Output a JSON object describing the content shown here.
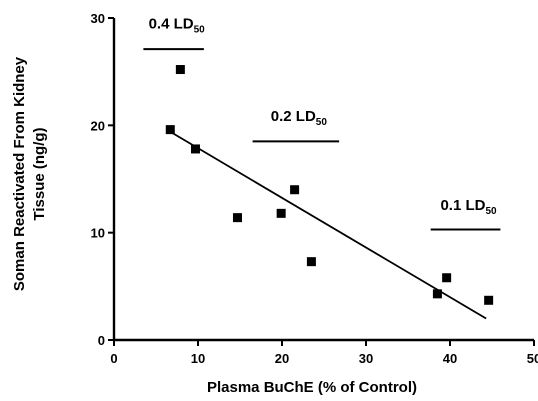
{
  "chart_data": {
    "type": "scatter",
    "title": "",
    "xlabel": "Plasma BuChE (% of Control)",
    "ylabel_lines": [
      "Soman Reactivated From Kidney",
      "Tissue (ng/g)"
    ],
    "xlim": [
      0,
      50
    ],
    "ylim": [
      0,
      30
    ],
    "x_ticks": [
      "0",
      "10",
      "20",
      "30",
      "40",
      "50"
    ],
    "y_ticks": [
      "0",
      "10",
      "20",
      "30"
    ],
    "grid": false,
    "legend": "none",
    "series": [
      {
        "points": [
          {
            "x": 6.7,
            "y": 19.6
          },
          {
            "x": 7.9,
            "y": 25.2
          },
          {
            "x": 9.7,
            "y": 17.8
          },
          {
            "x": 14.7,
            "y": 11.4
          },
          {
            "x": 19.9,
            "y": 11.8
          },
          {
            "x": 21.5,
            "y": 14.0
          },
          {
            "x": 23.5,
            "y": 7.3
          },
          {
            "x": 38.5,
            "y": 4.3
          },
          {
            "x": 39.6,
            "y": 5.8
          },
          {
            "x": 44.6,
            "y": 3.7
          }
        ]
      }
    ],
    "regression_line": {
      "x": [
        6.7,
        44.3
      ],
      "y": [
        19.4,
        2.0
      ]
    },
    "annotations": [
      {
        "main": "0.4 LD",
        "sub": "50",
        "dose_range": [
          3.5,
          10.7
        ],
        "y_line": 27.1,
        "y_text": 29.0
      },
      {
        "main": "0.2 LD",
        "sub": "50",
        "dose_range": [
          16.5,
          26.8
        ],
        "y_line": 18.5,
        "y_text": 20.4
      },
      {
        "main": "0.1 LD",
        "sub": "50",
        "dose_range": [
          37.7,
          46.0
        ],
        "y_line": 10.3,
        "y_text": 12.1
      }
    ],
    "colors": {
      "marker": "#000000",
      "line": "#000000",
      "axis": "#000000"
    }
  }
}
